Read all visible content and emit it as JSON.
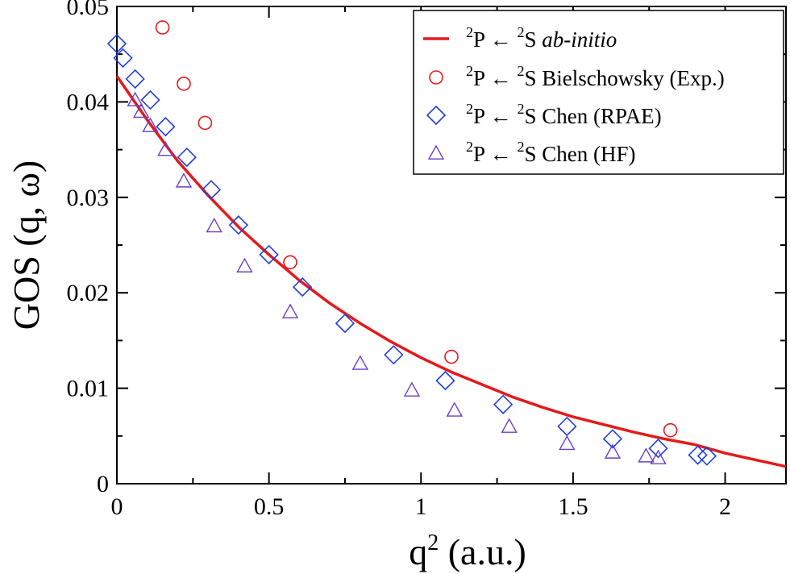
{
  "chart_data": {
    "type": "scatter",
    "xlabel": "q",
    "xlabel_sup": "2",
    "xlabel_unit": "(a.u.)",
    "ylabel": "GOS (q, ω)",
    "xlim": [
      0,
      2.2
    ],
    "ylim": [
      0,
      0.05
    ],
    "x_ticks": [
      0,
      0.5,
      1,
      1.5,
      2
    ],
    "x_tick_labels": [
      "0",
      "0.5",
      "1",
      "1.5",
      "2"
    ],
    "y_ticks": [
      0,
      0.01,
      0.02,
      0.03,
      0.04,
      0.05
    ],
    "y_tick_labels": [
      "0",
      "0.01",
      "0.02",
      "0.03",
      "0.04",
      "0.05"
    ],
    "grid": false,
    "legend_position": "top-right",
    "legend_prefix": "P ← ",
    "legend_sup_upper": "2",
    "legend_sup_lower": "2",
    "legend_letter": "S",
    "colors": {
      "abinitio": "#e31a1c",
      "bielschowsky": "#e31a1c",
      "chen_rpae": "#1f3fd9",
      "chen_hf": "#6a3fc8"
    },
    "series": [
      {
        "name": "ab-initio",
        "style": "line",
        "color": "#e31a1c",
        "x": [
          0.0,
          0.1,
          0.2,
          0.3,
          0.4,
          0.5,
          0.6,
          0.7,
          0.8,
          0.9,
          1.0,
          1.1,
          1.2,
          1.3,
          1.4,
          1.5,
          1.6,
          1.7,
          1.8,
          1.9,
          2.0,
          2.1,
          2.2
        ],
        "y": [
          0.0427,
          0.0381,
          0.0338,
          0.0302,
          0.0269,
          0.024,
          0.0213,
          0.0189,
          0.0168,
          0.0149,
          0.0132,
          0.0117,
          0.0104,
          0.0091,
          0.008,
          0.007,
          0.0062,
          0.0054,
          0.0047,
          0.0041,
          0.0032,
          0.0025,
          0.0018
        ]
      },
      {
        "name": "Bielschowsky (Exp.)",
        "style": "circle",
        "color": "#e31a1c",
        "x": [
          0.15,
          0.22,
          0.29,
          0.57,
          1.1,
          1.82
        ],
        "y": [
          0.0478,
          0.0419,
          0.0378,
          0.0232,
          0.0133,
          0.0056
        ]
      },
      {
        "name": "Chen (RPAE)",
        "style": "diamond",
        "color": "#1f3fd9",
        "x": [
          0.0,
          0.02,
          0.06,
          0.11,
          0.16,
          0.23,
          0.31,
          0.4,
          0.5,
          0.61,
          0.75,
          0.91,
          1.08,
          1.27,
          1.48,
          1.63,
          1.78,
          1.91,
          1.94
        ],
        "y": [
          0.0461,
          0.0446,
          0.0424,
          0.0402,
          0.0374,
          0.0342,
          0.0308,
          0.0271,
          0.024,
          0.0206,
          0.0168,
          0.0135,
          0.0108,
          0.0083,
          0.006,
          0.0047,
          0.0037,
          0.003,
          0.0029
        ]
      },
      {
        "name": "Chen (HF)",
        "style": "triangle",
        "color": "#6a3fc8",
        "x": [
          0.06,
          0.08,
          0.11,
          0.16,
          0.22,
          0.32,
          0.42,
          0.57,
          0.8,
          0.97,
          1.11,
          1.29,
          1.48,
          1.63,
          1.74,
          1.78
        ],
        "y": [
          0.0402,
          0.039,
          0.0375,
          0.035,
          0.0317,
          0.027,
          0.0228,
          0.018,
          0.0126,
          0.0098,
          0.0077,
          0.006,
          0.0042,
          0.0033,
          0.0029,
          0.0027
        ]
      }
    ]
  }
}
